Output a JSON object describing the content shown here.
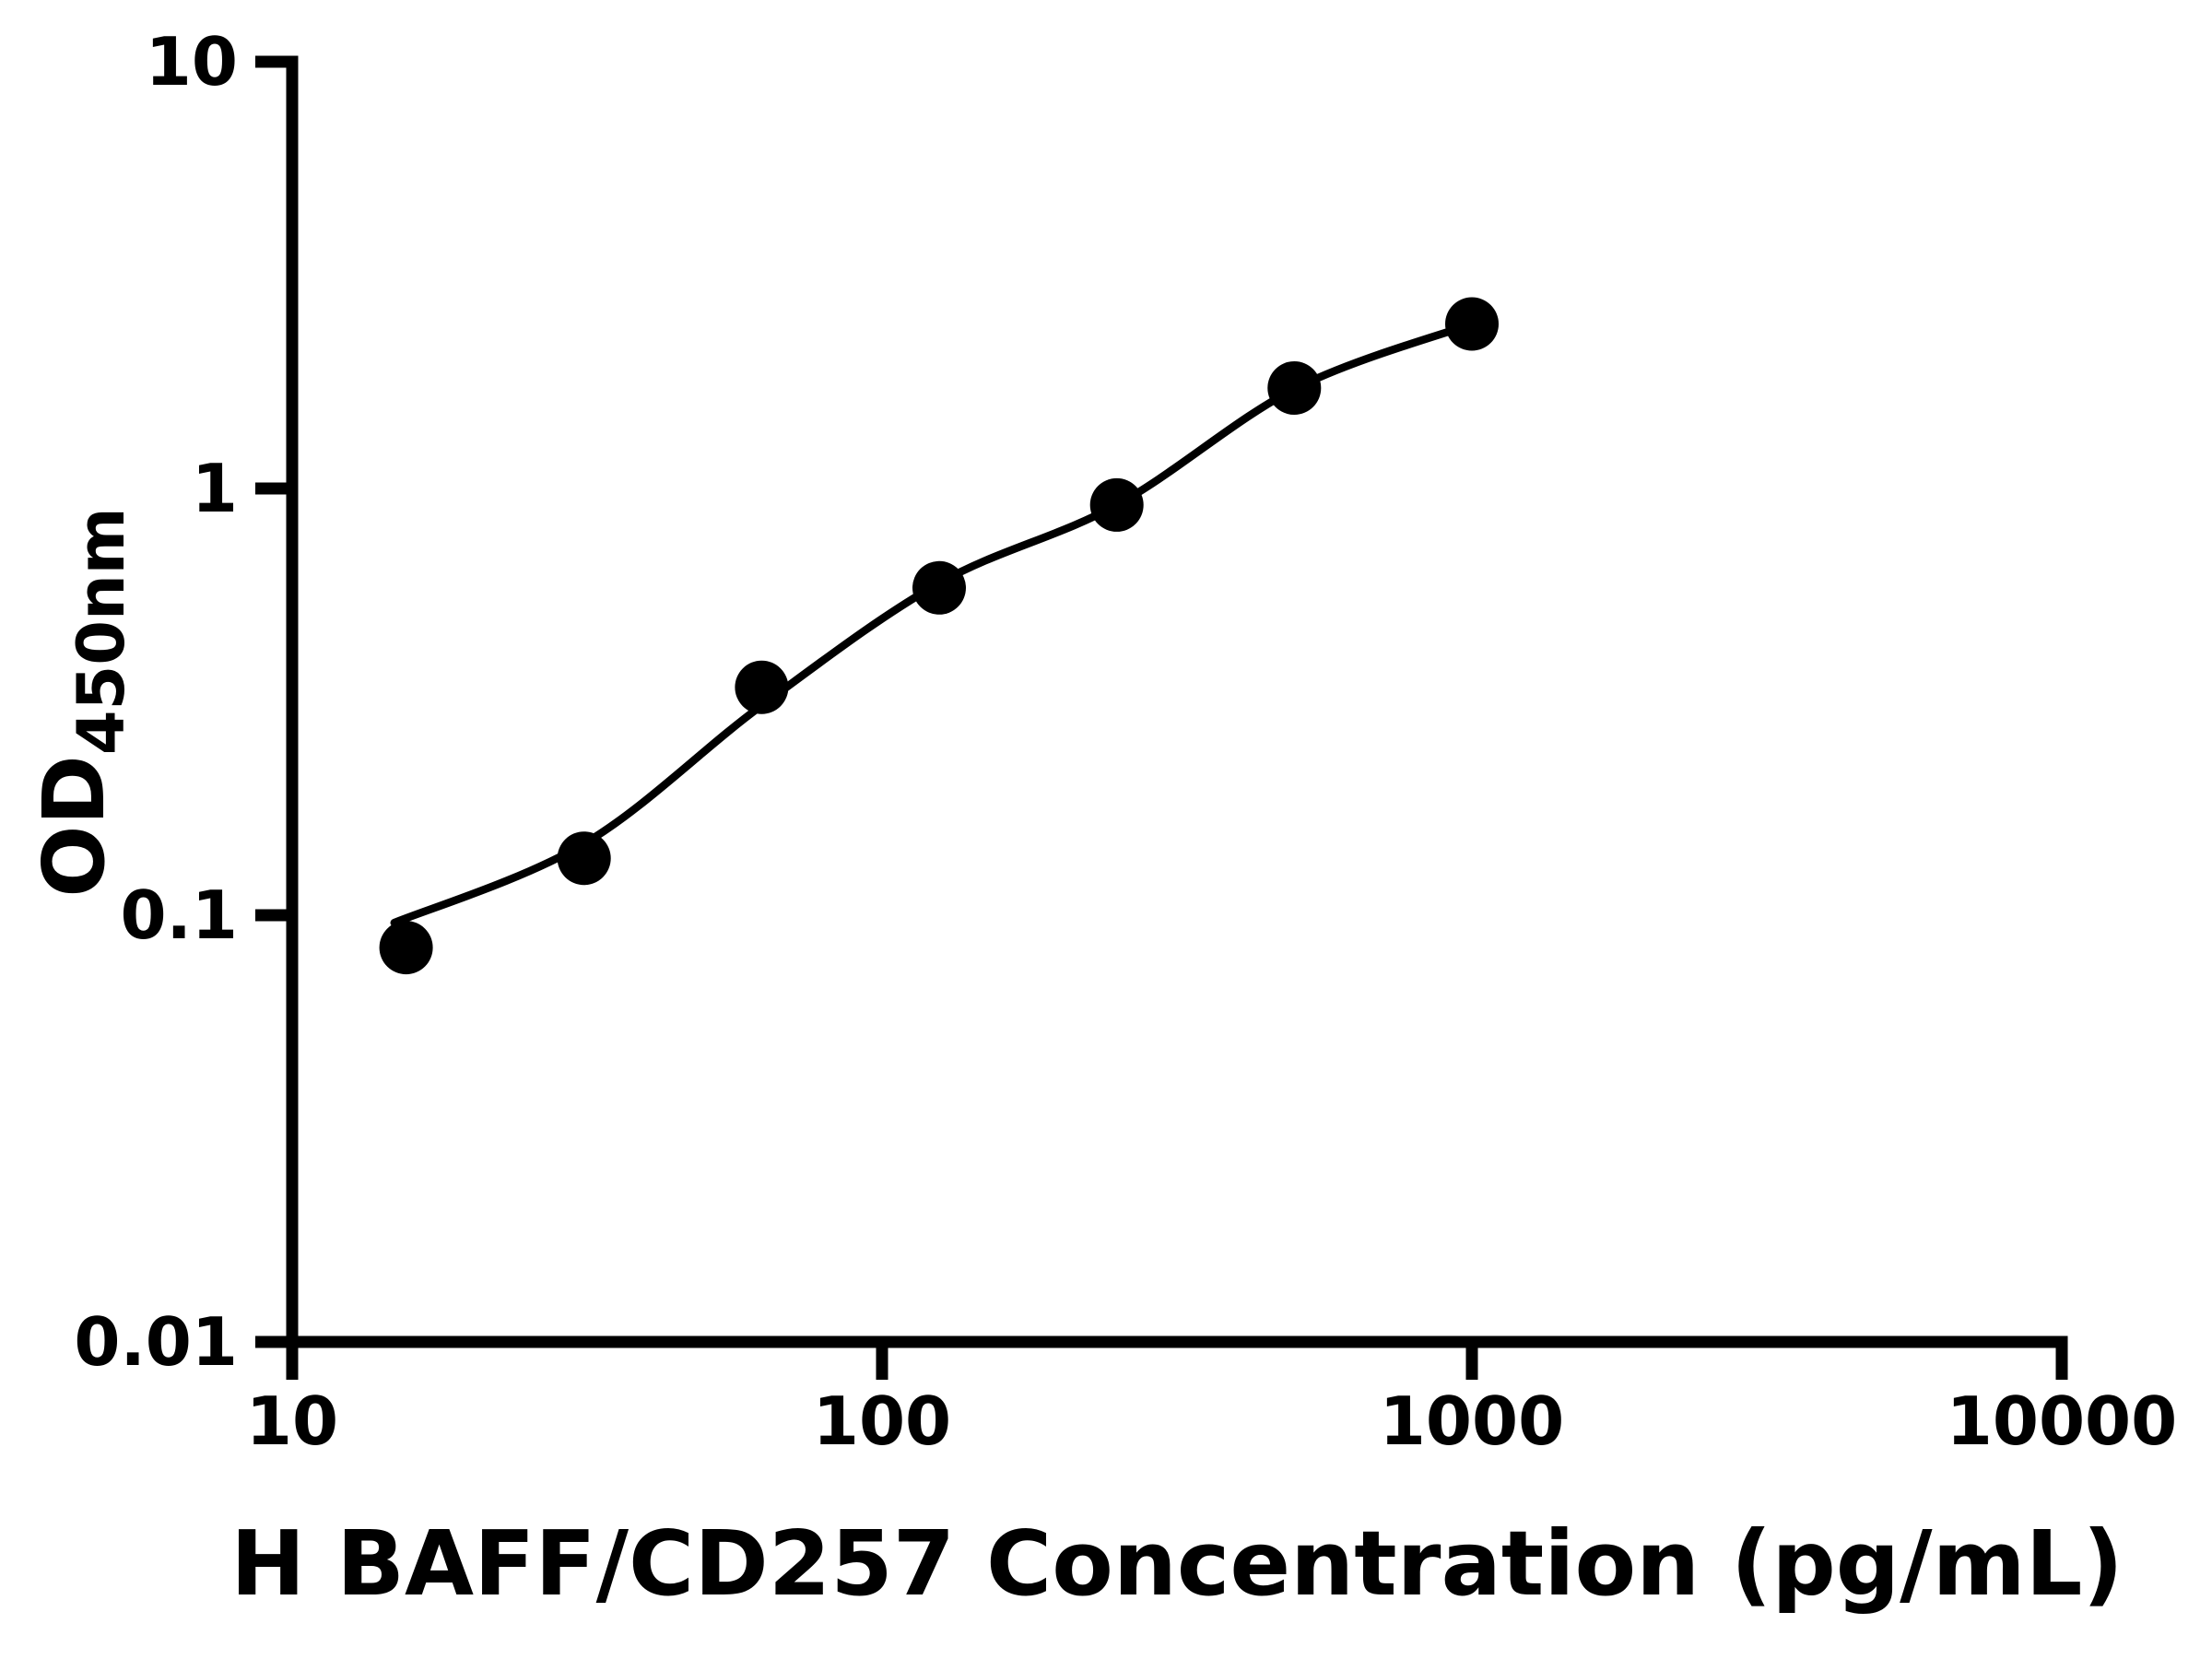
{
  "chart_data": {
    "type": "scatter",
    "title": "",
    "xlabel": "H BAFF/CD257 Concentration (pg/mL)",
    "ylabel_main": "OD",
    "ylabel_sub": "450nm",
    "x_scale": "log",
    "y_scale": "log",
    "xlim": [
      10,
      10000
    ],
    "ylim": [
      0.01,
      10
    ],
    "grid": false,
    "legend": false,
    "x_ticks": [
      {
        "value": 10,
        "label": "10"
      },
      {
        "value": 100,
        "label": "100"
      },
      {
        "value": 1000,
        "label": "1000"
      },
      {
        "value": 10000,
        "label": "10000"
      }
    ],
    "y_ticks": [
      {
        "value": 10,
        "label": "10"
      },
      {
        "value": 1,
        "label": "1"
      },
      {
        "value": 0.1,
        "label": "0.1"
      },
      {
        "value": 0.01,
        "label": "0.01"
      }
    ],
    "series": [
      {
        "name": "standard-points",
        "marker": "circle",
        "color": "#000000",
        "points": [
          {
            "x": 15.6,
            "od": 0.084
          },
          {
            "x": 31.25,
            "od": 0.136
          },
          {
            "x": 62.5,
            "od": 0.342
          },
          {
            "x": 125,
            "od": 0.585
          },
          {
            "x": 250,
            "od": 0.915
          },
          {
            "x": 500,
            "od": 1.72
          },
          {
            "x": 1000,
            "od": 2.43
          }
        ]
      }
    ],
    "fit_curve": {
      "name": "4pl-fit",
      "color": "#000000",
      "points": [
        {
          "x": 14.9,
          "od": 0.096
        },
        {
          "x": 31.25,
          "od": 0.147
        },
        {
          "x": 62.5,
          "od": 0.31
        },
        {
          "x": 125,
          "od": 0.6
        },
        {
          "x": 250,
          "od": 0.915
        },
        {
          "x": 500,
          "od": 1.71
        },
        {
          "x": 1000,
          "od": 2.43
        }
      ]
    }
  },
  "colors": {
    "background": "#ffffff",
    "foreground": "#000000"
  }
}
